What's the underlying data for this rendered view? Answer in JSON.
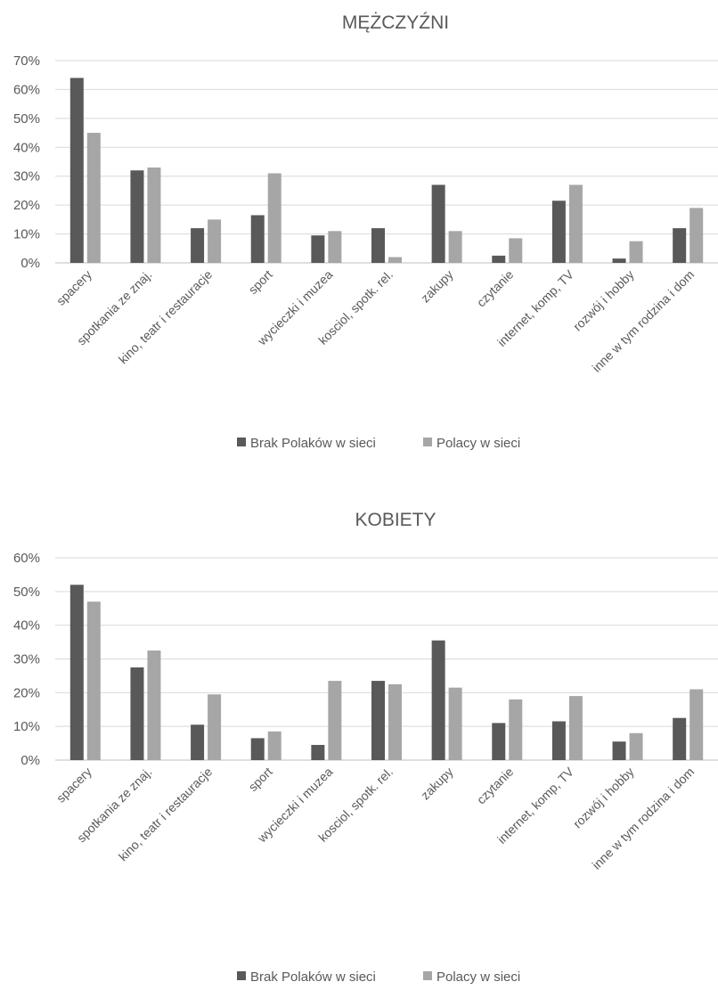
{
  "colors": {
    "series1": "#595959",
    "series2": "#a6a6a6"
  },
  "chart_data": [
    {
      "type": "bar",
      "title": "MĘŻCZYŹNI",
      "categories": [
        "spacery",
        "spotkania ze znaj.",
        "kino, teatr i restauracje",
        "sport",
        "wycieczki i muzea",
        "kosciol, spotk. rel.",
        "zakupy",
        "czytanie",
        "internet, komp, TV",
        "rozwój i hobby",
        "inne w tym rodzina i dom"
      ],
      "series": [
        {
          "name": "Brak Polaków w sieci",
          "values": [
            64,
            32,
            12,
            16.5,
            9.5,
            12,
            27,
            2.5,
            21.5,
            1.5,
            12
          ]
        },
        {
          "name": "Polacy w sieci",
          "values": [
            45,
            33,
            15,
            31,
            11,
            2,
            11,
            8.5,
            27,
            7.5,
            19
          ]
        }
      ],
      "yticks": [
        "0%",
        "10%",
        "20%",
        "30%",
        "40%",
        "50%",
        "60%",
        "70%"
      ],
      "ylim": [
        0,
        70
      ],
      "grid": true,
      "legend": "bottom"
    },
    {
      "type": "bar",
      "title": "KOBIETY",
      "categories": [
        "spacery",
        "spotkania ze znaj.",
        "kino, teatr i restauracje",
        "sport",
        "wycieczki i muzea",
        "kosciol, spotk. rel.",
        "zakupy",
        "czytanie",
        "internet, komp, TV",
        "rozwój i hobby",
        "inne w tym rodzina i dom"
      ],
      "series": [
        {
          "name": "Brak Polaków w sieci",
          "values": [
            52,
            27.5,
            10.5,
            6.5,
            4.5,
            23.5,
            35.5,
            11,
            11.5,
            5.5,
            12.5
          ]
        },
        {
          "name": "Polacy w sieci",
          "values": [
            47,
            32.5,
            19.5,
            8.5,
            23.5,
            22.5,
            21.5,
            18,
            19,
            8,
            21
          ]
        }
      ],
      "yticks": [
        "0%",
        "10%",
        "20%",
        "30%",
        "40%",
        "50%",
        "60%"
      ],
      "ylim": [
        0,
        60
      ],
      "grid": true,
      "legend": "bottom"
    }
  ]
}
